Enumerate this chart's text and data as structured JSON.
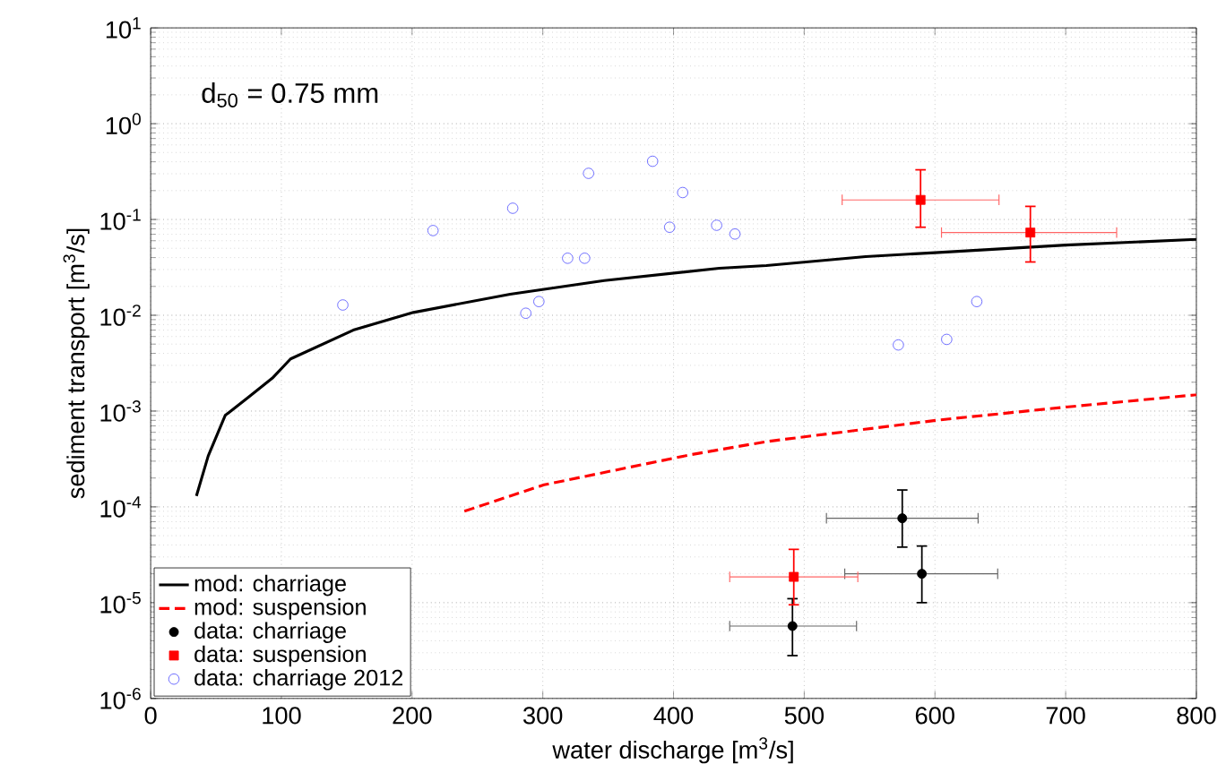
{
  "chart_data": {
    "type": "scatter",
    "xlabel": "water discharge [m$^{3}$/s]",
    "ylabel": "sediment transport [m$^{3}$/s]",
    "log": "y",
    "grid": true,
    "legend": "bottom left",
    "xlim": [
      0,
      800
    ],
    "xticks": [
      0,
      100,
      200,
      300,
      400,
      500,
      600,
      700,
      800
    ],
    "ylim": [
      1e-06,
      10
    ],
    "yticks": [
      {
        "value": 1e-06,
        "label": "10$^{-6}$"
      },
      {
        "value": 1e-05,
        "label": "10$^{-5}$"
      },
      {
        "value": 0.0001,
        "label": "10$^{-4}$"
      },
      {
        "value": 0.001,
        "label": "10$^{-3}$"
      },
      {
        "value": 0.01,
        "label": "10$^{-2}$"
      },
      {
        "value": 0.1,
        "label": "10$^{-1}$"
      },
      {
        "value": 1,
        "label": "10$^{0}$"
      },
      {
        "value": 10,
        "label": "10$^{1}$"
      }
    ],
    "annotations": [
      "d$_{50}$ = 0.75 mm"
    ],
    "series": [
      {
        "name": "mod: charriage",
        "type": "line",
        "line_style": "solid",
        "color": "#000000",
        "x": [
          35,
          44,
          57,
          75,
          93,
          107,
          155,
          201,
          275,
          347,
          435,
          471,
          547,
          600,
          700,
          800
        ],
        "values": [
          0.00013,
          0.00034,
          0.0009,
          0.0014,
          0.0022,
          0.0035,
          0.007,
          0.0107,
          0.0166,
          0.023,
          0.031,
          0.033,
          0.041,
          0.045,
          0.054,
          0.062
        ]
      },
      {
        "name": "mod: suspension",
        "type": "line",
        "line_style": "dashed",
        "color": "#ff0000",
        "x": [
          240,
          301,
          413,
          471,
          604,
          700,
          800
        ],
        "values": [
          9e-05,
          0.00017,
          0.00035,
          0.00048,
          0.00081,
          0.0011,
          0.00148
        ]
      },
      {
        "name": "data: charriage",
        "marker": "circle",
        "color": "#000000",
        "x": [
          575,
          590,
          491
        ],
        "values": [
          7.6e-05,
          2e-05,
          5.7e-06
        ],
        "errors": [
          [
            3.8e-05,
            0.00015
          ],
          [
            1e-05,
            3.9e-05
          ],
          [
            2.8e-06,
            1.1e-05
          ]
        ],
        "xerrors": [
          [
            517,
            633
          ],
          [
            531,
            648
          ],
          [
            443,
            540
          ]
        ]
      },
      {
        "name": "data: suspension",
        "marker": "square",
        "color": "#ff0000",
        "x": [
          589,
          673,
          492
        ],
        "values": [
          0.16,
          0.073,
          1.86e-05
        ],
        "errors": [
          [
            0.083,
            0.33
          ],
          [
            0.036,
            0.137
          ],
          [
            9.5e-06,
            3.6e-05
          ]
        ],
        "xerrors": [
          [
            529,
            649
          ],
          [
            605,
            739
          ],
          [
            443,
            541
          ]
        ]
      },
      {
        "name": "data: charriage 2012",
        "marker": "circle",
        "color": "#4a4aff",
        "x": [
          147,
          216,
          277,
          287,
          297,
          319,
          332,
          335,
          384,
          397,
          407,
          433,
          447,
          632,
          572,
          609
        ],
        "values": [
          0.0128,
          0.0766,
          0.131,
          0.0105,
          0.0139,
          0.0394,
          0.0394,
          0.303,
          0.405,
          0.083,
          0.191,
          0.087,
          0.0705,
          0.0139,
          0.0049,
          0.0056
        ]
      }
    ]
  }
}
